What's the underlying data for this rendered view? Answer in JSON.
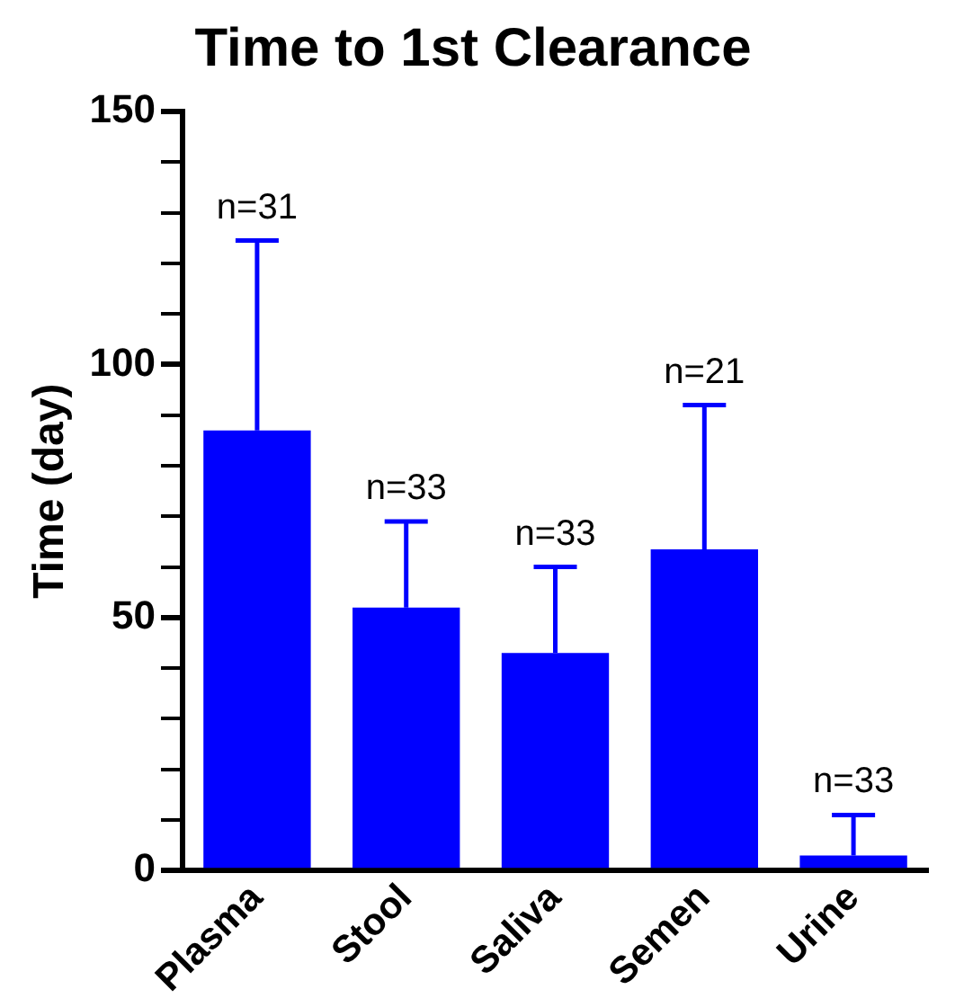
{
  "chart_data": {
    "type": "bar",
    "title": "Time to 1st Clearance",
    "ylabel": "Time (day)",
    "categories": [
      "Plasma",
      "Stool",
      "Saliva",
      "Semen",
      "Urine"
    ],
    "values": [
      87,
      52,
      43,
      63.5,
      3
    ],
    "errors": [
      [
        87,
        124.5
      ],
      [
        52,
        69
      ],
      [
        43,
        60
      ],
      [
        63.5,
        92
      ],
      [
        3,
        11
      ]
    ],
    "color": "#0000ff",
    "ylim": [
      0,
      150
    ],
    "yticks": [
      0,
      {
        "value": 10,
        "label": null
      },
      {
        "value": 20,
        "label": null
      },
      {
        "value": 30,
        "label": null
      },
      {
        "value": 40,
        "label": null
      },
      50,
      {
        "value": 60,
        "label": null
      },
      {
        "value": 70,
        "label": null
      },
      {
        "value": 80,
        "label": null
      },
      {
        "value": 90,
        "label": null
      },
      100,
      {
        "value": 110,
        "label": null
      },
      {
        "value": 120,
        "label": null
      },
      {
        "value": 130,
        "label": null
      },
      {
        "value": 140,
        "label": null
      },
      150
    ],
    "annotations": [
      {
        "text": "n=31",
        "x": "Plasma",
        "y": 124.5
      },
      {
        "text": "n=33",
        "x": "Stool",
        "y": 69
      },
      {
        "text": "n=33",
        "x": "Saliva",
        "y": 60
      },
      {
        "text": "n=21",
        "x": "Semen",
        "y": 92
      },
      {
        "text": "n=33",
        "x": "Urine",
        "y": 11
      }
    ],
    "grid": false,
    "legend": false
  }
}
